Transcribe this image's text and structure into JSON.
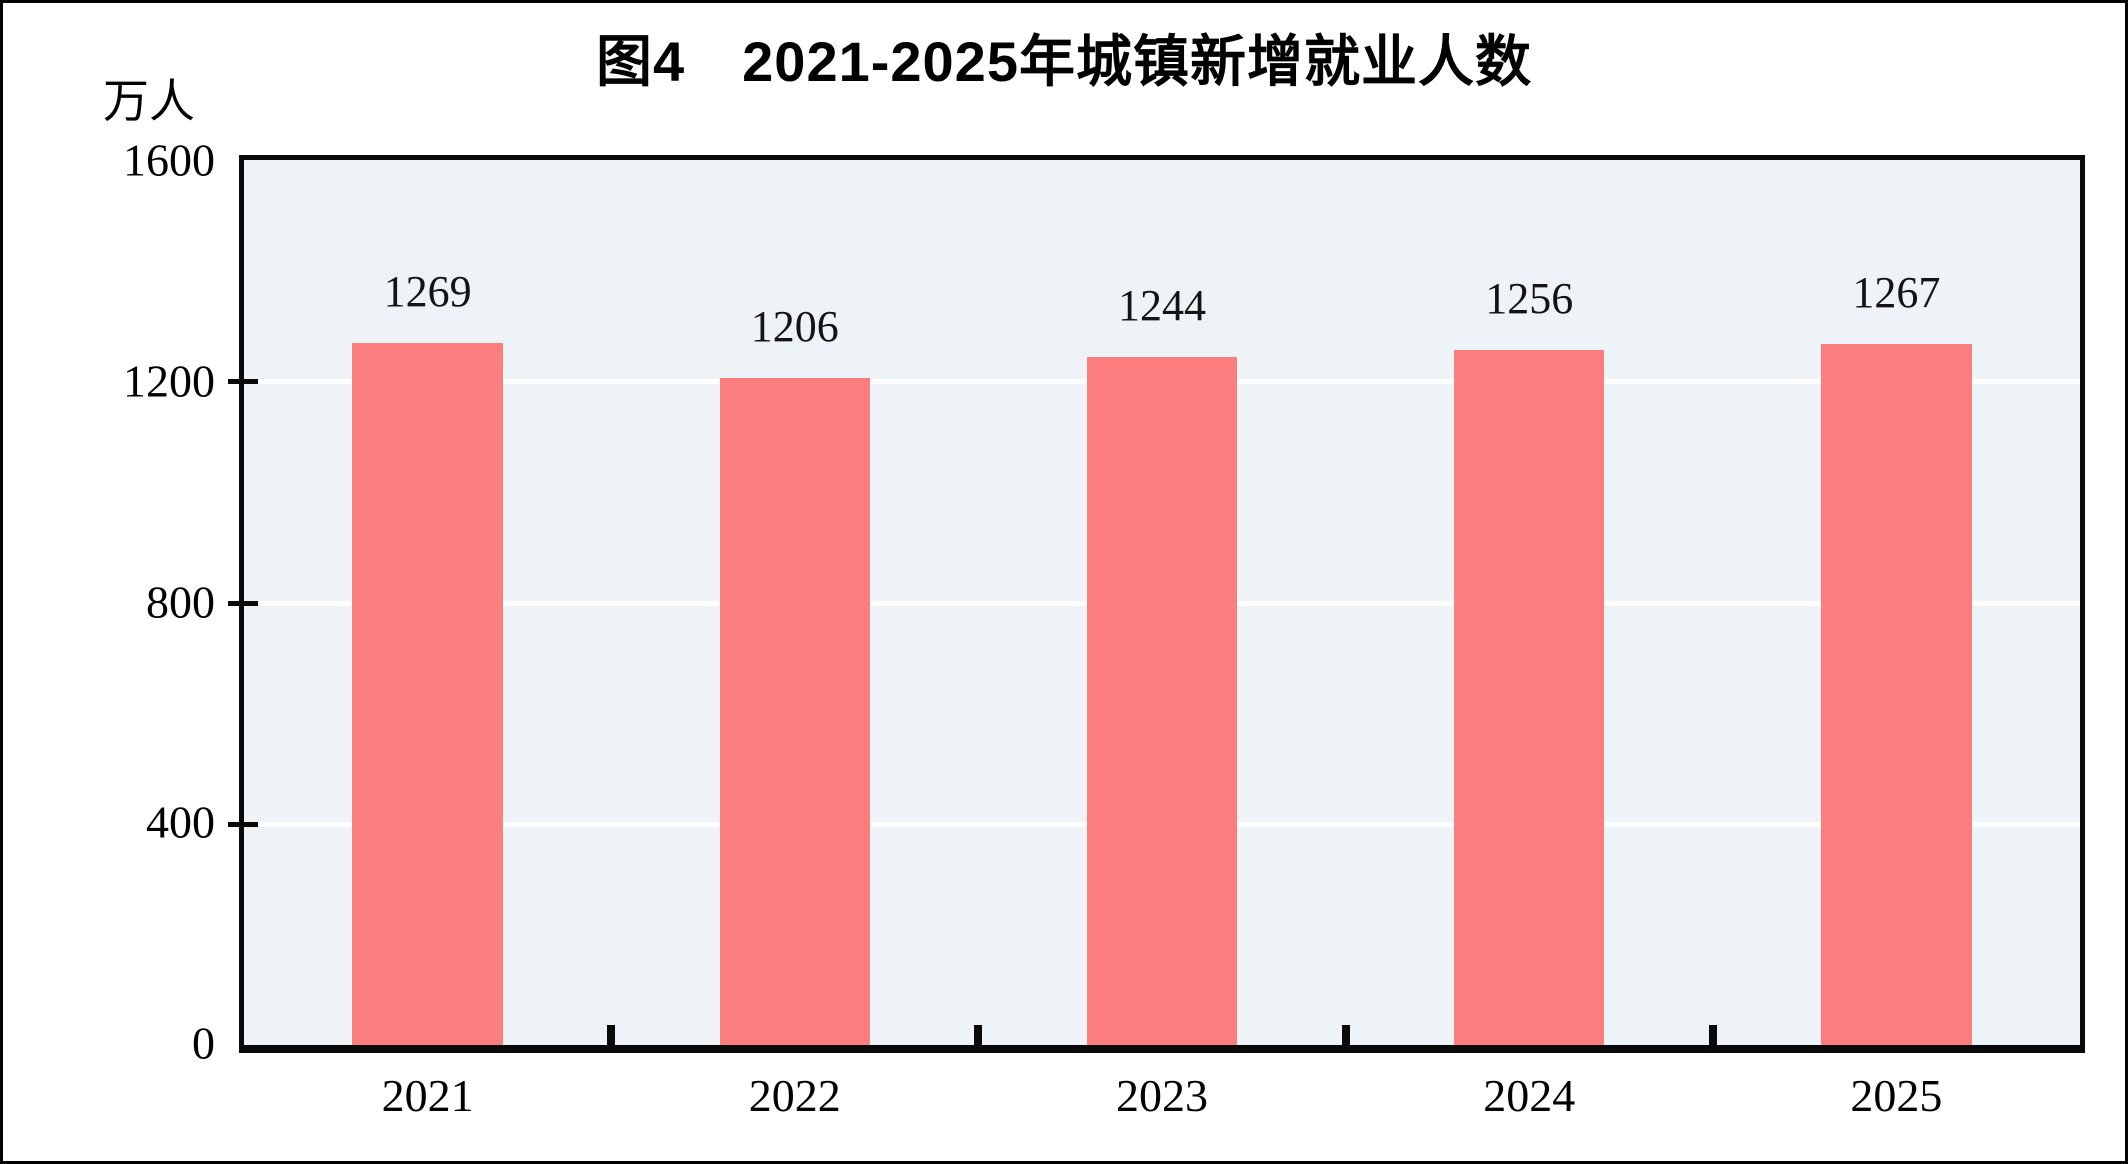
{
  "figure": {
    "title": "图4　2021-2025年城镇新增就业人数",
    "unit_label": "万人"
  },
  "chart_data": {
    "type": "bar",
    "title": "图4　2021-2025年城镇新增就业人数",
    "categories": [
      "2021",
      "2022",
      "2023",
      "2024",
      "2025"
    ],
    "values": [
      1269,
      1206,
      1244,
      1256,
      1267
    ],
    "xlabel": "",
    "ylabel": "万人",
    "ylim": [
      0,
      1600
    ],
    "y_ticks": [
      0,
      400,
      800,
      1200,
      1600
    ],
    "grid": "horizontal white gridlines on light-blue plot background",
    "legend": "none",
    "data_labels": true,
    "colors": {
      "bar": "#FC7D7D",
      "plot_background": "#EDF3F6",
      "gridline": "#FFFFFF",
      "axis": "#0A0A0A",
      "text": "#000000",
      "outer_border": "#000000"
    }
  }
}
